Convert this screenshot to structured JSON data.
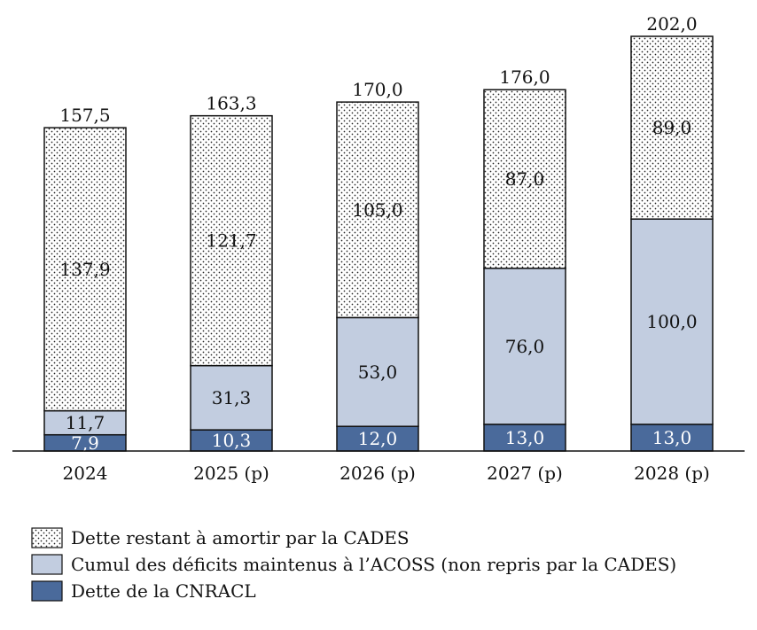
{
  "chart_data": {
    "type": "bar",
    "stacked": true,
    "categories": [
      "2024",
      "2025 (p)",
      "2026 (p)",
      "2027 (p)",
      "2028 (p)"
    ],
    "series": [
      {
        "name": "Dette de la CNRACL",
        "values": [
          7.9,
          10.3,
          12.0,
          13.0,
          13.0
        ],
        "labels": [
          "7,9",
          "10,3",
          "12,0",
          "13,0",
          "13,0"
        ],
        "color": "#4a6a9b",
        "pattern": "solid"
      },
      {
        "name": "Cumul des déficits maintenus à l’ACOSS (non repris par la CADES)",
        "values": [
          11.7,
          31.3,
          53.0,
          76.0,
          100.0
        ],
        "labels": [
          "11,7",
          "31,3",
          "53,0",
          "76,0",
          "100,0"
        ],
        "color": "#c2cde0",
        "pattern": "solid"
      },
      {
        "name": "Dette restant à amortir par la CADES",
        "values": [
          137.9,
          121.7,
          105.0,
          87.0,
          89.0
        ],
        "labels": [
          "137,9",
          "121,7",
          "105,0",
          "87,0",
          "89,0"
        ],
        "color": "#ffffff",
        "pattern": "dots"
      }
    ],
    "totals": [
      157.5,
      163.3,
      170.0,
      176.0,
      202.0
    ],
    "total_labels": [
      "157,5",
      "163,3",
      "170,0",
      "176,0",
      "202,0"
    ],
    "ylim": [
      0,
      202
    ],
    "grid": false,
    "legend": "bottom-left",
    "legend_order": [
      2,
      1,
      0
    ]
  }
}
